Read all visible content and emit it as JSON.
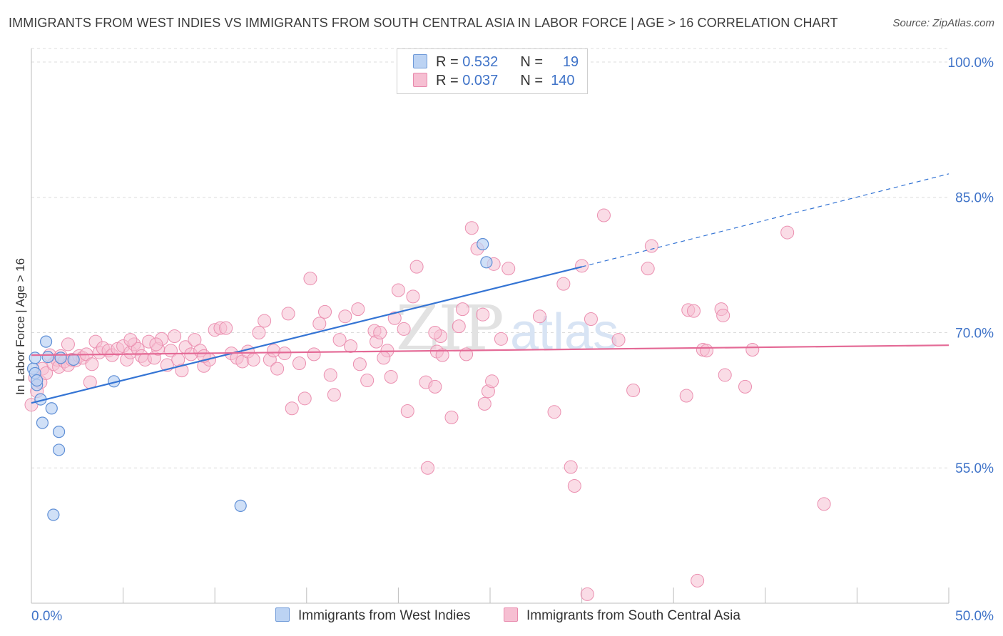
{
  "header": {
    "title": "IMMIGRANTS FROM WEST INDIES VS IMMIGRANTS FROM SOUTH CENTRAL ASIA IN LABOR FORCE | AGE > 16 CORRELATION CHART",
    "source": "Source: ZipAtlas.com"
  },
  "legend": {
    "rows": [
      {
        "r_label": "R =",
        "r_value": "0.532",
        "n_label": "N =",
        "n_value": "19"
      },
      {
        "r_label": "R =",
        "r_value": "0.037",
        "n_label": "N =",
        "n_value": "140"
      }
    ]
  },
  "watermark": {
    "zip": "ZIP",
    "atlas": "atlas"
  },
  "colors": {
    "blue": "#3474d4",
    "blue_fill": "#bcd3f3",
    "pink": "#e46a96",
    "pink_fill": "#f6bfd2",
    "tick_label": "#3f73c8",
    "grid": "#dcdcdc"
  },
  "chart_data": {
    "type": "scatter",
    "title": "IMMIGRANTS FROM WEST INDIES VS IMMIGRANTS FROM SOUTH CENTRAL ASIA IN LABOR FORCE | AGE > 16 CORRELATION CHART",
    "xlabel": "",
    "ylabel": "In Labor Force | Age > 16",
    "xlim": [
      0,
      50
    ],
    "ylim": [
      40,
      101.5
    ],
    "x_tick_labels": [
      "0.0%",
      "50.0%"
    ],
    "y_ticks": [
      55,
      70,
      85,
      100
    ],
    "y_tick_labels": [
      "55.0%",
      "70.0%",
      "85.0%",
      "100.0%"
    ],
    "grid": "horizontal dashed",
    "legend_position": "top-center",
    "series": [
      {
        "name": "Immigrants from West Indies",
        "color": "#3474d4",
        "trend": {
          "x0": 0,
          "y0": 62.2,
          "x1": 30,
          "y1": 77.3,
          "dashed_to_x": 50,
          "dashed_to_y": 87.6
        },
        "points": [
          [
            0.1,
            66.0
          ],
          [
            0.2,
            67.2
          ],
          [
            0.2,
            65.5
          ],
          [
            0.3,
            64.2
          ],
          [
            0.3,
            64.7
          ],
          [
            0.5,
            62.6
          ],
          [
            0.6,
            60.0
          ],
          [
            0.8,
            69.0
          ],
          [
            0.9,
            67.3
          ],
          [
            1.1,
            61.6
          ],
          [
            1.5,
            59.0
          ],
          [
            1.5,
            57.0
          ],
          [
            1.6,
            67.2
          ],
          [
            1.2,
            49.8
          ],
          [
            2.3,
            67.0
          ],
          [
            4.5,
            64.6
          ],
          [
            11.4,
            50.8
          ],
          [
            24.6,
            79.8
          ],
          [
            24.8,
            77.8
          ]
        ]
      },
      {
        "name": "Immigrants from South Central Asia",
        "color": "#e46a96",
        "trend": {
          "x0": 0,
          "y0": 67.5,
          "x1": 50,
          "y1": 68.6
        },
        "points": [
          [
            0.0,
            62.0
          ],
          [
            0.2,
            65.0
          ],
          [
            0.3,
            63.5
          ],
          [
            0.5,
            64.5
          ],
          [
            0.6,
            66.0
          ],
          [
            0.8,
            65.5
          ],
          [
            1.0,
            67.5
          ],
          [
            1.2,
            66.5
          ],
          [
            1.4,
            67.0
          ],
          [
            1.5,
            66.2
          ],
          [
            1.6,
            67.4
          ],
          [
            1.8,
            66.8
          ],
          [
            2.0,
            68.7
          ],
          [
            2.0,
            66.4
          ],
          [
            2.2,
            67.0
          ],
          [
            2.4,
            66.9
          ],
          [
            2.6,
            67.4
          ],
          [
            2.8,
            67.2
          ],
          [
            3.0,
            67.6
          ],
          [
            3.2,
            64.5
          ],
          [
            3.3,
            66.5
          ],
          [
            3.5,
            69.0
          ],
          [
            3.7,
            67.8
          ],
          [
            3.9,
            68.3
          ],
          [
            4.2,
            68.0
          ],
          [
            4.4,
            67.5
          ],
          [
            4.7,
            68.2
          ],
          [
            5.0,
            68.5
          ],
          [
            5.2,
            67.0
          ],
          [
            5.4,
            67.8
          ],
          [
            5.6,
            68.7
          ],
          [
            5.8,
            68.2
          ],
          [
            6.0,
            67.4
          ],
          [
            6.2,
            67.0
          ],
          [
            6.4,
            69.0
          ],
          [
            6.7,
            67.2
          ],
          [
            6.9,
            68.2
          ],
          [
            7.1,
            69.3
          ],
          [
            7.4,
            66.4
          ],
          [
            7.6,
            68.0
          ],
          [
            7.8,
            69.6
          ],
          [
            8.0,
            67.0
          ],
          [
            8.2,
            65.8
          ],
          [
            8.4,
            68.4
          ],
          [
            8.7,
            67.6
          ],
          [
            8.9,
            69.2
          ],
          [
            9.2,
            68.0
          ],
          [
            9.4,
            66.3
          ],
          [
            9.7,
            67.0
          ],
          [
            10.0,
            70.3
          ],
          [
            10.3,
            70.5
          ],
          [
            10.6,
            70.5
          ],
          [
            10.9,
            67.7
          ],
          [
            11.2,
            67.2
          ],
          [
            11.5,
            66.8
          ],
          [
            11.8,
            67.9
          ],
          [
            12.1,
            67.0
          ],
          [
            12.4,
            70.0
          ],
          [
            12.7,
            71.3
          ],
          [
            13.0,
            67.0
          ],
          [
            13.4,
            66.0
          ],
          [
            13.8,
            67.7
          ],
          [
            14.0,
            72.1
          ],
          [
            14.2,
            61.6
          ],
          [
            14.6,
            66.6
          ],
          [
            14.9,
            62.7
          ],
          [
            15.2,
            76.0
          ],
          [
            15.4,
            67.6
          ],
          [
            15.7,
            71.0
          ],
          [
            16.0,
            72.3
          ],
          [
            16.3,
            65.3
          ],
          [
            16.5,
            63.1
          ],
          [
            16.8,
            69.2
          ],
          [
            17.1,
            71.8
          ],
          [
            17.4,
            68.5
          ],
          [
            17.8,
            72.6
          ],
          [
            17.9,
            66.5
          ],
          [
            18.3,
            64.7
          ],
          [
            18.7,
            70.2
          ],
          [
            18.8,
            69.0
          ],
          [
            19.0,
            70.0
          ],
          [
            19.4,
            68.0
          ],
          [
            19.6,
            65.1
          ],
          [
            19.8,
            71.6
          ],
          [
            20.0,
            74.7
          ],
          [
            20.3,
            70.4
          ],
          [
            20.5,
            61.3
          ],
          [
            20.8,
            74.0
          ],
          [
            21.0,
            77.3
          ],
          [
            21.5,
            64.5
          ],
          [
            21.6,
            55.0
          ],
          [
            22.0,
            64.0
          ],
          [
            22.1,
            67.9
          ],
          [
            22.3,
            69.6
          ],
          [
            22.4,
            67.5
          ],
          [
            22.9,
            60.6
          ],
          [
            23.3,
            70.7
          ],
          [
            23.5,
            72.6
          ],
          [
            23.7,
            67.6
          ],
          [
            24.0,
            81.6
          ],
          [
            24.3,
            79.3
          ],
          [
            24.6,
            72.0
          ],
          [
            24.7,
            62.1
          ],
          [
            24.9,
            63.5
          ],
          [
            25.1,
            64.6
          ],
          [
            25.2,
            77.6
          ],
          [
            25.6,
            69.3
          ],
          [
            26.0,
            77.1
          ],
          [
            27.7,
            71.8
          ],
          [
            28.5,
            61.2
          ],
          [
            29.0,
            75.4
          ],
          [
            29.4,
            55.1
          ],
          [
            29.6,
            53.0
          ],
          [
            30.0,
            77.4
          ],
          [
            30.5,
            71.5
          ],
          [
            30.3,
            41.0
          ],
          [
            31.2,
            83.0
          ],
          [
            32.0,
            69.2
          ],
          [
            32.8,
            63.6
          ],
          [
            33.6,
            77.1
          ],
          [
            33.8,
            79.6
          ],
          [
            35.7,
            63.0
          ],
          [
            35.8,
            72.5
          ],
          [
            36.1,
            72.4
          ],
          [
            36.3,
            42.5
          ],
          [
            36.6,
            68.1
          ],
          [
            36.8,
            68.0
          ],
          [
            37.6,
            72.6
          ],
          [
            37.7,
            71.9
          ],
          [
            37.8,
            65.3
          ],
          [
            38.9,
            64.0
          ],
          [
            39.3,
            68.1
          ],
          [
            41.2,
            81.1
          ],
          [
            43.2,
            51.0
          ],
          [
            22.0,
            70.0
          ],
          [
            13.2,
            68.0
          ],
          [
            9.4,
            67.4
          ],
          [
            6.8,
            68.7
          ],
          [
            5.4,
            69.2
          ],
          [
            19.2,
            67.2
          ]
        ]
      }
    ]
  },
  "bottom_legend": [
    {
      "label": "Immigrants from West Indies"
    },
    {
      "label": "Immigrants from South Central Asia"
    }
  ]
}
